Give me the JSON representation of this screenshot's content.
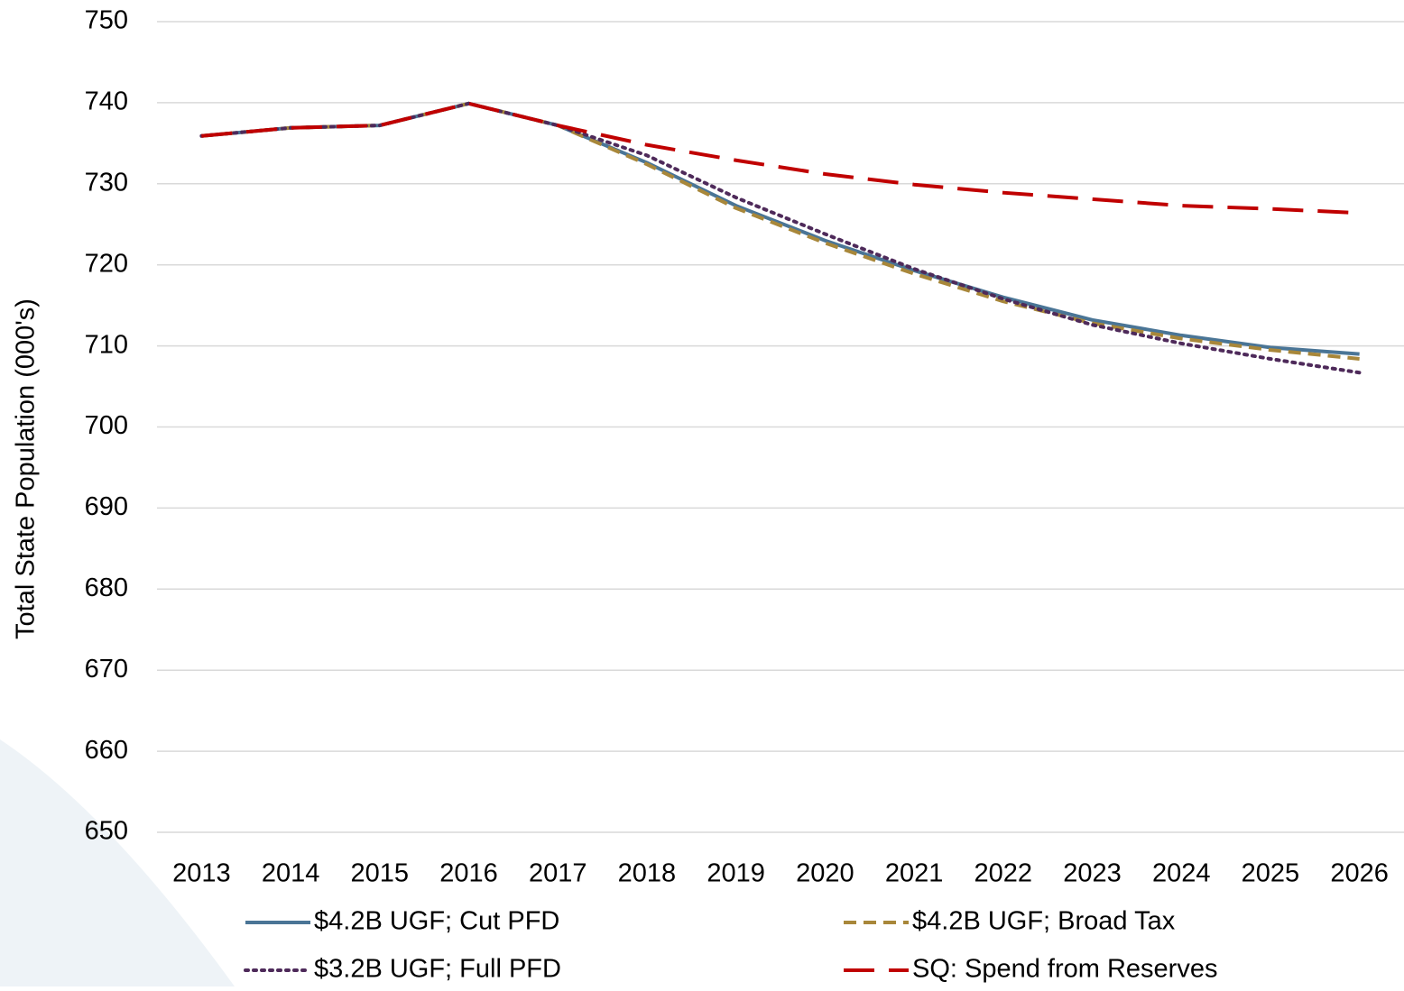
{
  "chart_data": {
    "type": "line",
    "y_label": "Total State Population (000's)",
    "categories": [
      "2013",
      "2014",
      "2015",
      "2016",
      "2017",
      "2018",
      "2019",
      "2020",
      "2021",
      "2022",
      "2023",
      "2024",
      "2025",
      "2026"
    ],
    "ylim": [
      650,
      750
    ],
    "yticks": [
      650,
      660,
      670,
      680,
      690,
      700,
      710,
      720,
      730,
      740,
      750
    ],
    "grid": true,
    "series": [
      {
        "name": "$4.2B UGF; Cut PFD",
        "color": "#4a7596",
        "style": "solid",
        "values": [
          735.9,
          736.9,
          737.2,
          739.9,
          737.2,
          732.6,
          727.3,
          723.0,
          719.3,
          716.0,
          713.2,
          711.3,
          709.8,
          709.0
        ]
      },
      {
        "name": "$4.2B UGF; Broad Tax",
        "color": "#a8873a",
        "style": "dashed",
        "values": [
          735.9,
          736.9,
          737.2,
          739.9,
          737.2,
          732.4,
          727.0,
          722.7,
          718.9,
          715.5,
          712.8,
          710.9,
          709.5,
          708.4
        ]
      },
      {
        "name": "$3.2B UGF; Full PFD",
        "color": "#4e2a5a",
        "style": "dotted",
        "values": [
          735.9,
          736.9,
          737.2,
          739.9,
          737.2,
          733.5,
          728.3,
          723.8,
          719.5,
          715.8,
          712.6,
          710.3,
          708.4,
          706.7
        ]
      },
      {
        "name": "SQ: Spend from Reserves",
        "color": "#c00000",
        "style": "longdash",
        "values": [
          735.9,
          736.9,
          737.2,
          739.9,
          737.2,
          734.8,
          732.9,
          731.2,
          729.9,
          728.9,
          728.1,
          727.3,
          726.9,
          726.4
        ]
      }
    ]
  }
}
